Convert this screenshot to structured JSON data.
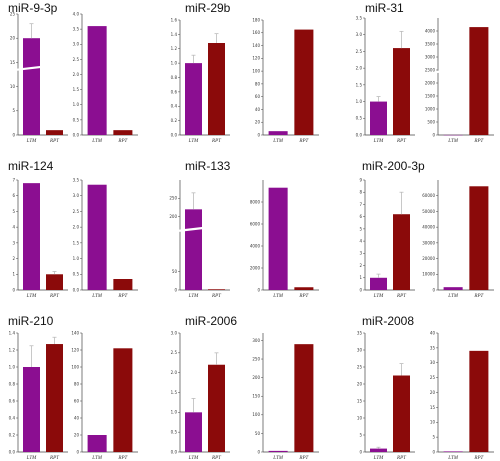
{
  "colors": {
    "ltm": "#8b0e91",
    "rpt": "#8b0a0a"
  },
  "chart_data": [
    {
      "type": "bar",
      "title": "miR-9-3p",
      "categories": [
        "LTM",
        "RPT"
      ],
      "subplots": [
        {
          "values": [
            20.0,
            1.0
          ],
          "err": [
            3.0,
            0
          ],
          "ylim": [
            0,
            25
          ],
          "yticks": [
            0,
            5,
            10,
            15,
            20,
            25
          ],
          "tick_text": [
            "0",
            "5",
            "10",
            "15",
            "20",
            "25"
          ],
          "broken": true
        },
        {
          "values": [
            3.6,
            0.16
          ],
          "err": [
            0,
            0
          ],
          "ylim": [
            0,
            4.0
          ],
          "yticks": [
            0,
            0.5,
            1.0,
            1.5,
            2.0,
            2.5,
            3.0,
            3.5,
            4.0
          ],
          "tick_text": [
            "0.0",
            "0.5",
            "1.0",
            "1.5",
            "2.0",
            "2.5",
            "3.0",
            "3.5",
            "4.0"
          ]
        }
      ]
    },
    {
      "type": "bar",
      "title": "miR-29b",
      "categories": [
        "LTM",
        "RPT"
      ],
      "subplots": [
        {
          "values": [
            1.0,
            1.28
          ],
          "err": [
            0.11,
            0.13
          ],
          "ylim": [
            0,
            1.6
          ],
          "yticks": [
            0,
            0.2,
            0.4,
            0.6,
            0.8,
            1.0,
            1.2,
            1.4,
            1.6
          ],
          "tick_text": [
            "0.0",
            "0.2",
            "0.4",
            "0.6",
            "0.8",
            "1.0",
            "1.2",
            "1.4",
            "1.6"
          ]
        },
        {
          "values": [
            6,
            165
          ],
          "err": [
            0,
            0
          ],
          "ylim": [
            0,
            180
          ],
          "yticks": [
            0,
            20,
            40,
            60,
            80,
            100,
            120,
            140,
            160,
            180
          ],
          "tick_text": [
            "0",
            "20",
            "40",
            "60",
            "80",
            "100",
            "120",
            "140",
            "160",
            "180"
          ]
        }
      ]
    },
    {
      "type": "bar",
      "title": "miR-31",
      "categories": [
        "LTM",
        "RPT"
      ],
      "subplots": [
        {
          "values": [
            1.0,
            2.6
          ],
          "err": [
            0.15,
            0.5
          ],
          "ylim": [
            0,
            3.5
          ],
          "yticks": [
            0,
            0.5,
            1.0,
            1.5,
            2.0,
            2.5,
            3.0,
            3.5
          ],
          "tick_text": [
            "0.0",
            "0.5",
            "1.0",
            "1.5",
            "2.0",
            "2.5",
            "3.0",
            "3.5"
          ]
        },
        {
          "values": [
            4,
            4150
          ],
          "err": [
            0,
            0
          ],
          "ylim": [
            0,
            4500
          ],
          "yticks": [
            0,
            500,
            1000,
            1500,
            2000,
            2500,
            3000,
            3500,
            4000
          ],
          "tick_text": [
            "0",
            "500",
            "1000",
            "1500",
            "2000",
            "2500",
            "3000",
            "3500",
            "4000"
          ],
          "broken": true
        }
      ]
    },
    {
      "type": "bar",
      "title": "miR-124",
      "categories": [
        "LTM",
        "RPT"
      ],
      "subplots": [
        {
          "values": [
            6.8,
            1.0
          ],
          "err": [
            0,
            0.18
          ],
          "ylim": [
            0,
            7
          ],
          "yticks": [
            0,
            1,
            2,
            3,
            4,
            5,
            6,
            7
          ],
          "tick_text": [
            "0",
            "1",
            "2",
            "3",
            "4",
            "5",
            "6",
            "7"
          ]
        },
        {
          "values": [
            3.35,
            0.35
          ],
          "err": [
            0,
            0
          ],
          "ylim": [
            0,
            3.5
          ],
          "yticks": [
            0,
            0.5,
            1.0,
            1.5,
            2.0,
            2.5,
            3.0,
            3.5
          ],
          "tick_text": [
            "0.0",
            "0.5",
            "1.0",
            "1.5",
            "2.0",
            "2.5",
            "3.0",
            "3.5"
          ]
        }
      ]
    },
    {
      "type": "bar",
      "title": "miR-133",
      "categories": [
        "LTM",
        "RPT"
      ],
      "subplots": [
        {
          "values": [
            220,
            2
          ],
          "err": [
            45,
            0
          ],
          "ylim": [
            0,
            300
          ],
          "yticks": [
            0,
            50,
            200,
            250
          ],
          "tick_text": [
            "0",
            "50",
            "200",
            "250"
          ],
          "broken": true
        },
        {
          "values": [
            9300,
            250
          ],
          "err": [
            0,
            0
          ],
          "ylim": [
            0,
            10000
          ],
          "yticks": [
            0,
            2000,
            4000,
            6000,
            8000
          ],
          "tick_text": [
            "0",
            "2000",
            "4000",
            "6000",
            "8000"
          ]
        }
      ]
    },
    {
      "type": "bar",
      "title": "miR-200-3p",
      "categories": [
        "LTM",
        "RPT"
      ],
      "subplots": [
        {
          "values": [
            1.0,
            6.2
          ],
          "err": [
            0.3,
            1.8
          ],
          "ylim": [
            0,
            9
          ],
          "yticks": [
            0,
            1,
            2,
            3,
            4,
            5,
            6,
            7,
            8,
            9
          ],
          "tick_text": [
            "0",
            "1",
            "2",
            "3",
            "4",
            "5",
            "6",
            "7",
            "8",
            "9"
          ]
        },
        {
          "values": [
            1800,
            66000
          ],
          "err": [
            0,
            0
          ],
          "ylim": [
            0,
            70000
          ],
          "yticks": [
            0,
            10000,
            20000,
            30000,
            40000,
            50000,
            60000
          ],
          "tick_text": [
            "0",
            "10000",
            "20000",
            "30000",
            "40000",
            "50000",
            "60000"
          ]
        }
      ]
    },
    {
      "type": "bar",
      "title": "miR-210",
      "categories": [
        "LTM",
        "RPT"
      ],
      "subplots": [
        {
          "values": [
            1.0,
            1.27
          ],
          "err": [
            0.25,
            0.08
          ],
          "ylim": [
            0,
            1.4
          ],
          "yticks": [
            0,
            0.2,
            0.4,
            0.6,
            0.8,
            1.0,
            1.2,
            1.4
          ],
          "tick_text": [
            "0.0",
            "0.2",
            "0.4",
            "0.6",
            "0.8",
            "1.0",
            "1.2",
            "1.4"
          ]
        },
        {
          "values": [
            20,
            122
          ],
          "err": [
            0,
            0
          ],
          "ylim": [
            0,
            140
          ],
          "yticks": [
            0,
            20,
            40,
            60,
            80,
            100,
            120,
            140
          ],
          "tick_text": [
            "0",
            "20",
            "40",
            "60",
            "80",
            "100",
            "120",
            "140"
          ]
        }
      ]
    },
    {
      "type": "bar",
      "title": "miR-2006",
      "categories": [
        "LTM",
        "RPT"
      ],
      "subplots": [
        {
          "values": [
            1.0,
            2.2
          ],
          "err": [
            0.35,
            0.3
          ],
          "ylim": [
            0,
            3.0
          ],
          "yticks": [
            0,
            0.5,
            1.0,
            1.5,
            2.0,
            2.5,
            3.0
          ],
          "tick_text": [
            "0.0",
            "0.5",
            "1.0",
            "1.5",
            "2.0",
            "2.5",
            "3.0"
          ]
        },
        {
          "values": [
            3,
            290
          ],
          "err": [
            0,
            0
          ],
          "ylim": [
            0,
            320
          ],
          "yticks": [
            0,
            50,
            100,
            150,
            200,
            250,
            300
          ],
          "tick_text": [
            "0",
            "50",
            "100",
            "150",
            "200",
            "250",
            "300"
          ]
        }
      ]
    },
    {
      "type": "bar",
      "title": "miR-2008",
      "categories": [
        "LTM",
        "RPT"
      ],
      "subplots": [
        {
          "values": [
            1.0,
            22.5
          ],
          "err": [
            0.4,
            3.5
          ],
          "ylim": [
            0,
            35
          ],
          "yticks": [
            0,
            5,
            10,
            15,
            20,
            25,
            30,
            35
          ],
          "tick_text": [
            "0",
            "5",
            "10",
            "15",
            "20",
            "25",
            "30",
            "35"
          ]
        },
        {
          "values": [
            0.2,
            34
          ],
          "err": [
            0,
            0
          ],
          "ylim": [
            0,
            40
          ],
          "yticks": [
            0,
            5,
            10,
            15,
            20,
            25,
            30,
            35,
            40
          ],
          "tick_text": [
            "0",
            "5",
            "10",
            "15",
            "20",
            "25",
            "30",
            "35",
            "40"
          ]
        }
      ]
    }
  ]
}
